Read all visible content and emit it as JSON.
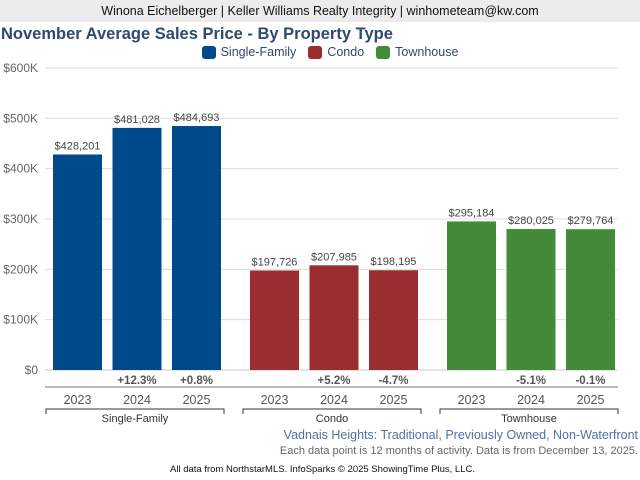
{
  "header": {
    "agent_line": "Winona Eichelberger | Keller Williams Realty Integrity | winhometeam@kw.com"
  },
  "legend": [
    {
      "label": "Single-Family",
      "color": "#004a8c"
    },
    {
      "label": "Condo",
      "color": "#9b2d30"
    },
    {
      "label": "Townhouse",
      "color": "#438b38"
    }
  ],
  "subtitle": "Vadnais Heights: Traditional, Previously Owned, Non-Waterfront",
  "note": "Each data point is 12 months of activity. Data is from December 13, 2025.",
  "footer": "All data from NorthstarMLS. InfoSparks © 2025 ShowingTime Plus, LLC.",
  "chart_data": {
    "type": "bar",
    "title": "November Average Sales Price - By Property Type",
    "xlabel": "",
    "ylabel": "",
    "ylim": [
      0,
      600000
    ],
    "yticks": [
      0,
      100000,
      200000,
      300000,
      400000,
      500000,
      600000
    ],
    "ytick_labels": [
      "$0",
      "$100K",
      "$200K",
      "$300K",
      "$400K",
      "$500K",
      "$600K"
    ],
    "grid": true,
    "legend_position": "top-center",
    "categories": [
      "2023",
      "2024",
      "2025"
    ],
    "series": [
      {
        "name": "Single-Family",
        "color": "#004a8c",
        "values": [
          428201,
          481028,
          484693
        ],
        "labels": [
          "$428,201",
          "$481,028",
          "$484,693"
        ],
        "changes": [
          "",
          "+12.3%",
          "+0.8%"
        ]
      },
      {
        "name": "Condo",
        "color": "#9b2d30",
        "values": [
          197726,
          207985,
          198195
        ],
        "labels": [
          "$197,726",
          "$207,985",
          "$198,195"
        ],
        "changes": [
          "",
          "+5.2%",
          "-4.7%"
        ]
      },
      {
        "name": "Townhouse",
        "color": "#438b38",
        "values": [
          295184,
          280025,
          279764
        ],
        "labels": [
          "$295,184",
          "$280,025",
          "$279,764"
        ],
        "changes": [
          "",
          "-5.1%",
          "-0.1%"
        ]
      }
    ]
  }
}
